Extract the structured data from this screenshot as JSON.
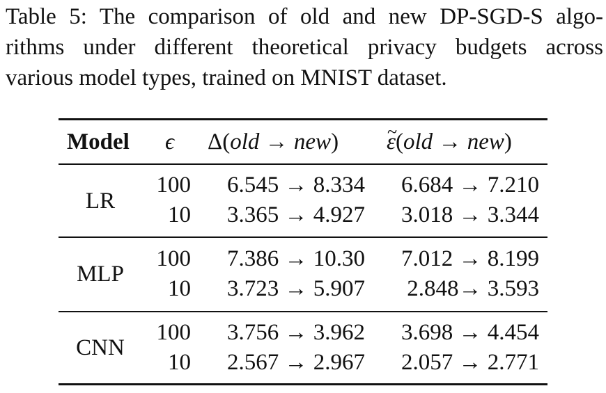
{
  "caption": {
    "lines": [
      "Table 5: The comparison of old and new DP-SGD-S algo-",
      "rithms under different theoretical privacy budgets across",
      "various model types, trained on MNIST dataset."
    ]
  },
  "table": {
    "headers": {
      "model": "Model",
      "epsilon": "ϵ",
      "delta": "Δ(old → new)",
      "delta_symbol": "Δ",
      "epsilon_tilde": "ε̃(old → new)",
      "epsilon_tilde_symbol": "ε",
      "old": "old",
      "new": "new",
      "arrow": "→",
      "open_paren": "(",
      "close_paren": ")"
    },
    "groups": [
      {
        "model": "LR",
        "rows": [
          {
            "epsilon": "100",
            "delta": "6.545 → 8.334",
            "epsilon_tilde": "6.684 → 7.210"
          },
          {
            "epsilon": "10",
            "delta": "3.365 → 4.927",
            "epsilon_tilde": "3.018 → 3.344"
          }
        ]
      },
      {
        "model": "MLP",
        "rows": [
          {
            "epsilon": "100",
            "delta": "7.386 → 10.30",
            "epsilon_tilde": "7.012 → 8.199"
          },
          {
            "epsilon": "10",
            "delta": "3.723 → 5.907",
            "epsilon_tilde": "2.848→ 3.593"
          }
        ]
      },
      {
        "model": "CNN",
        "rows": [
          {
            "epsilon": "100",
            "delta": "3.756 → 3.962",
            "epsilon_tilde": "3.698 → 4.454"
          },
          {
            "epsilon": "10",
            "delta": "2.567 → 2.967",
            "epsilon_tilde": "2.057 → 2.771"
          }
        ]
      }
    ]
  }
}
